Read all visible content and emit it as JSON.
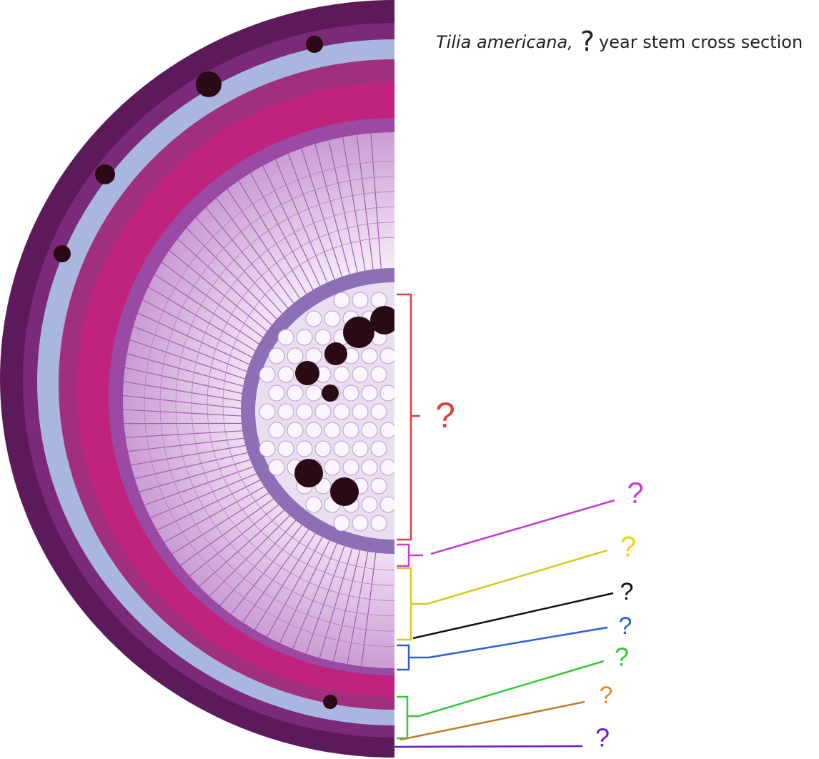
{
  "title": {
    "species": "Tilia americana,",
    "unknown": "?",
    "rest": "year stem cross section"
  },
  "labels": [
    {
      "text": "?",
      "color": "#e0403a"
    },
    {
      "text": "?",
      "color": "#d23ad6"
    },
    {
      "text": "?",
      "color": "#e8d51c"
    },
    {
      "text": "?",
      "color": "#111111"
    },
    {
      "text": "?",
      "color": "#2b5fd9"
    },
    {
      "text": "?",
      "color": "#36c73a"
    },
    {
      "text": "?",
      "color": "#ee8a1f"
    },
    {
      "text": "?",
      "color": "#6a1fc9"
    }
  ]
}
